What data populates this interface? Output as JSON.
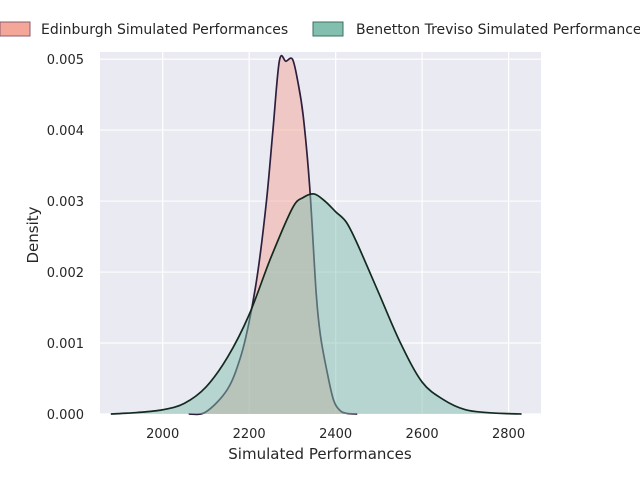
{
  "chart_data": {
    "type": "area",
    "xlabel": "Simulated Performances",
    "ylabel": "Density",
    "xlim": [
      1855,
      2875
    ],
    "ylim": [
      0,
      0.0051
    ],
    "x_ticks": [
      2000,
      2200,
      2400,
      2600,
      2800
    ],
    "x_tick_labels": [
      "2000",
      "2200",
      "2400",
      "2600",
      "2800"
    ],
    "y_ticks": [
      0,
      0.001,
      0.002,
      0.003,
      0.004,
      0.005
    ],
    "y_tick_labels": [
      "0.000",
      "0.001",
      "0.002",
      "0.003",
      "0.004",
      "0.005"
    ],
    "grid": true,
    "legend_position": "top",
    "series": [
      {
        "name": "Edinburgh Simulated Performances",
        "fill_color": "#f4a698",
        "line_color": "#2e1f3d",
        "x": [
          2060,
          2100,
          2150,
          2180,
          2200,
          2220,
          2240,
          2255,
          2270,
          2285,
          2300,
          2312,
          2325,
          2340,
          2355,
          2365,
          2380,
          2395,
          2410,
          2425,
          2450
        ],
        "y": [
          0,
          3e-05,
          0.00035,
          0.0008,
          0.0013,
          0.002,
          0.003,
          0.004,
          0.00498,
          0.00497,
          0.005,
          0.0047,
          0.0042,
          0.0032,
          0.0017,
          0.0011,
          0.0006,
          0.0002,
          5e-05,
          1e-05,
          0
        ]
      },
      {
        "name": "Benetton Treviso Simulated Performances",
        "fill_color": "#82bfae",
        "line_color": "#132a1f",
        "x": [
          1880,
          1940,
          2000,
          2050,
          2100,
          2150,
          2200,
          2250,
          2300,
          2325,
          2350,
          2375,
          2400,
          2425,
          2450,
          2500,
          2550,
          2600,
          2650,
          2700,
          2750,
          2800,
          2830
        ],
        "y": [
          0,
          2e-05,
          6e-05,
          0.00015,
          0.00038,
          0.0008,
          0.0014,
          0.0022,
          0.0029,
          0.00305,
          0.0031,
          0.003,
          0.00285,
          0.0027,
          0.0024,
          0.0017,
          0.001,
          0.00045,
          0.0002,
          6e-05,
          2e-05,
          5e-06,
          0
        ]
      }
    ]
  }
}
